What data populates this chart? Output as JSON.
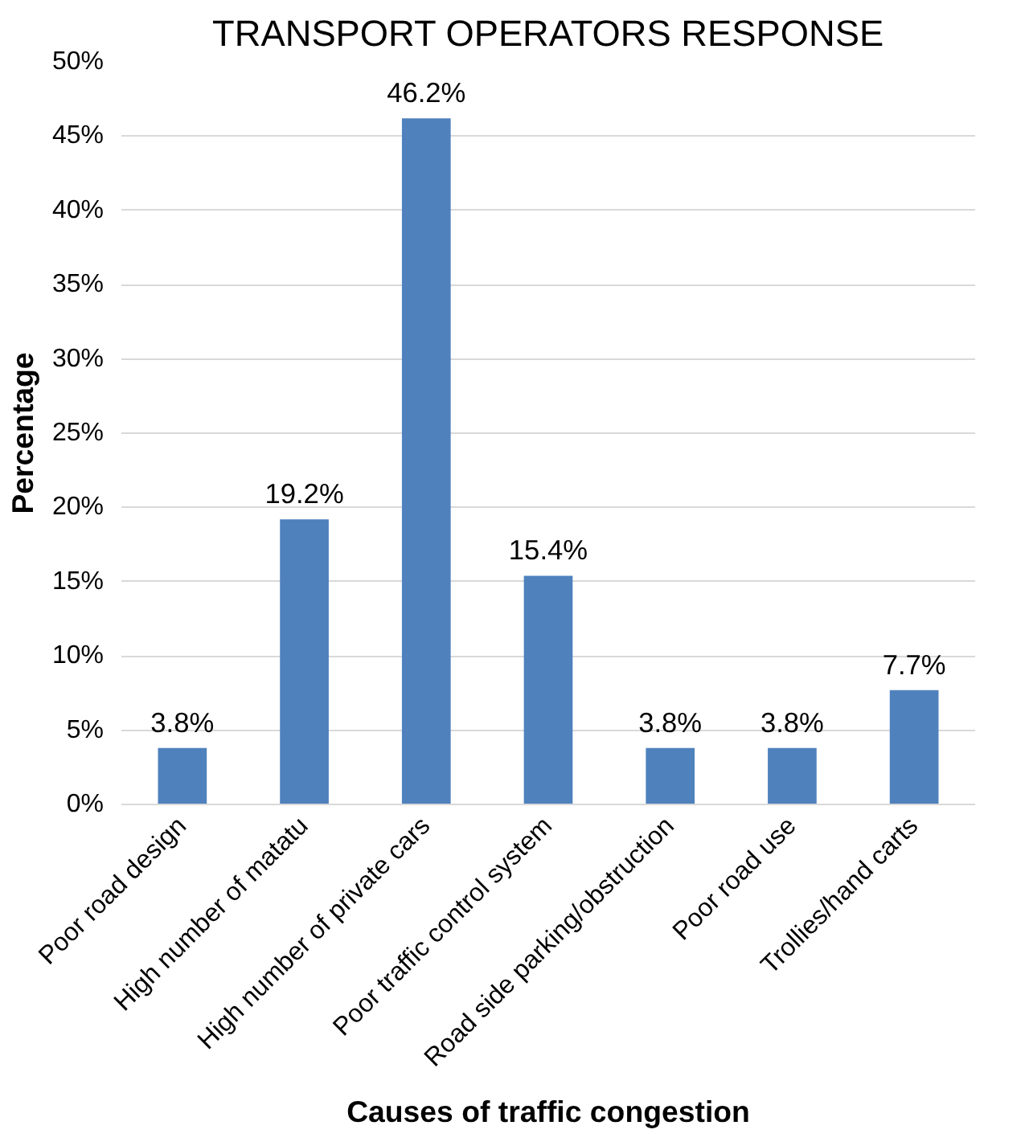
{
  "chart_data": {
    "type": "bar",
    "title": "TRANSPORT OPERATORS RESPONSE",
    "xlabel": "Causes of traffic congestion",
    "ylabel": "Percentage",
    "categories": [
      "Poor road design",
      "High number of matatu",
      "High number of private cars",
      "Poor traffic control system",
      "Road side parking/obstruction",
      "Poor road use",
      "Trollies/hand carts"
    ],
    "values": [
      3.8,
      19.2,
      46.2,
      15.4,
      3.8,
      3.8,
      7.7
    ],
    "value_labels": [
      "3.8%",
      "19.2%",
      "46.2%",
      "15.4%",
      "3.8%",
      "3.8%",
      "7.7%"
    ],
    "color": "#4f81bd",
    "ylim": [
      0,
      50
    ],
    "yticks": [
      {
        "value": 0,
        "label": "0%"
      },
      {
        "value": 5,
        "label": "5%"
      },
      {
        "value": 10,
        "label": "10%"
      },
      {
        "value": 15,
        "label": "15%"
      },
      {
        "value": 20,
        "label": "20%"
      },
      {
        "value": 25,
        "label": "25%"
      },
      {
        "value": 30,
        "label": "30%"
      },
      {
        "value": 35,
        "label": "35%"
      },
      {
        "value": 40,
        "label": "40%"
      },
      {
        "value": 45,
        "label": "45%"
      },
      {
        "value": 50,
        "label": "50%"
      }
    ],
    "grid": "y"
  }
}
